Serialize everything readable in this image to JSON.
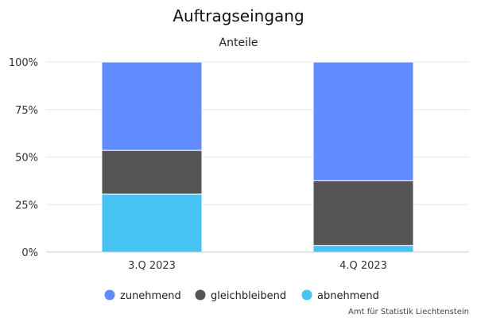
{
  "chart_data": {
    "type": "bar",
    "stacked": true,
    "title": "Auftragseingang",
    "subtitle": "Anteile",
    "categories": [
      "3.Q 2023",
      "4.Q 2023"
    ],
    "series": [
      {
        "name": "abnehmend",
        "values": [
          30.5,
          3.5
        ],
        "color": "#46c3f2"
      },
      {
        "name": "gleichbleibend",
        "values": [
          23,
          34
        ],
        "color": "#555555"
      },
      {
        "name": "zunehmend",
        "values": [
          46.5,
          62.5
        ],
        "color": "#608cff"
      }
    ],
    "legend_order": [
      "zunehmend",
      "gleichbleibend",
      "abnehmend"
    ],
    "ylim": [
      0,
      100
    ],
    "yticks": [
      0,
      25,
      50,
      75,
      100
    ],
    "ytick_labels": [
      "0%",
      "25%",
      "50%",
      "75%",
      "100%"
    ],
    "grid": true,
    "legend_position": "bottom-center",
    "credit": "Amt für Statistik Liechtenstein"
  }
}
